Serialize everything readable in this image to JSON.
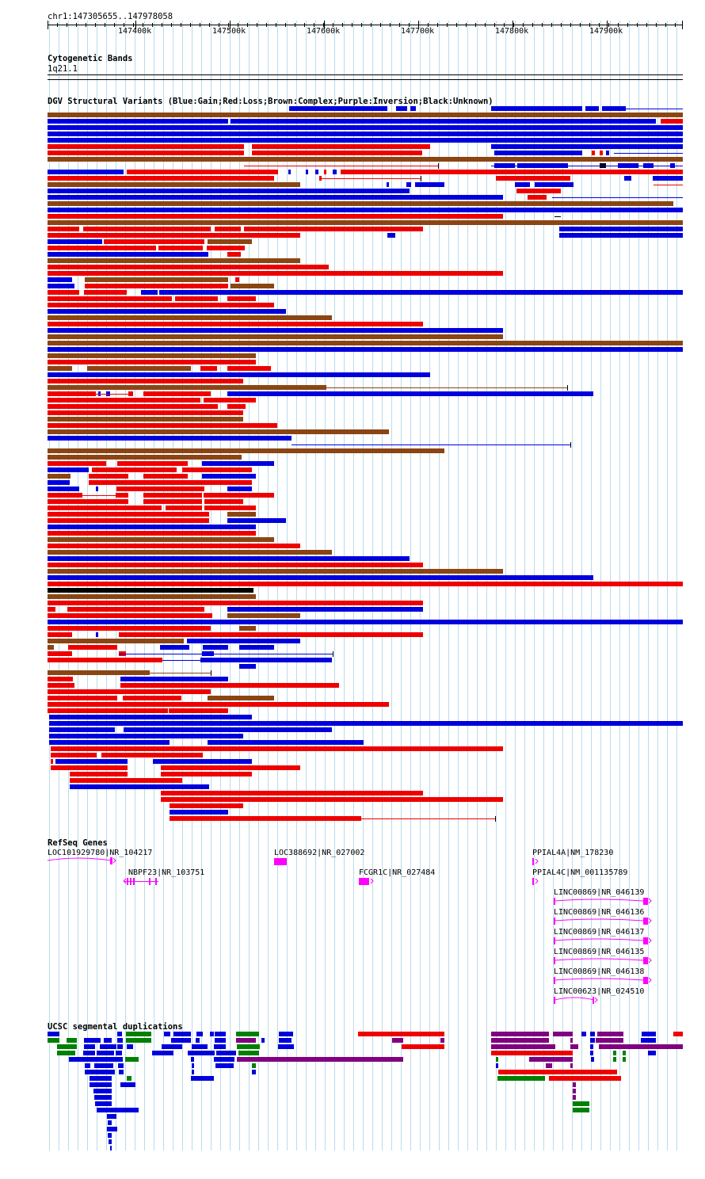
{
  "region": "chr1:147305655..147978058",
  "ruler": {
    "ticks": [
      "147400k",
      "147500k",
      "147600k",
      "147700k",
      "147800k",
      "147900k"
    ]
  },
  "tracks": {
    "cytoband": {
      "title": "Cytogenetic Bands",
      "band": "1q21.1"
    },
    "dgv": {
      "title": "DGV Structural Variants (Blue:Gain;Red:Loss;Brown:Complex;Purple:Inversion;Black:Unknown)"
    },
    "refseq": {
      "title": "RefSeq Genes"
    },
    "segdup": {
      "title": "UCSC segmental duplications"
    }
  },
  "colors": {
    "gain": "#0000dd",
    "loss": "#ee0000",
    "complex": "#8b4513",
    "unknown": "#000000",
    "gene": "#ff00ff",
    "grid": "#b8dcec",
    "segdup_purple": "#800080",
    "segdup_green": "#008000"
  },
  "genes": [
    {
      "label": "LOC101929780|NR_104217"
    },
    {
      "label": "NBPF23|NR_103751"
    },
    {
      "label": "LOC388692|NR_027002"
    },
    {
      "label": "FCGR1C|NR_027484"
    },
    {
      "label": "PPIAL4A|NM_178230"
    },
    {
      "label": "PPIAL4C|NM_001135789"
    },
    {
      "label": "LINC00869|NR_046139"
    },
    {
      "label": "LINC00869|NR_046136"
    },
    {
      "label": "LINC00869|NR_046137"
    },
    {
      "label": "LINC00869|NR_046135"
    },
    {
      "label": "LINC00869|NR_046138"
    },
    {
      "label": "LINC00623|NR_024510"
    }
  ]
}
